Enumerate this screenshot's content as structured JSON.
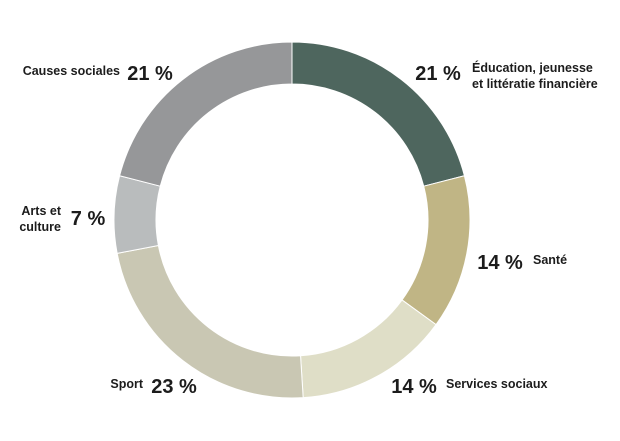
{
  "chart_data": {
    "type": "pie",
    "variant": "donut",
    "start_angle_deg": 0,
    "direction": "clockwise",
    "slices": [
      {
        "label_lines": [
          "Éducation, jeunesse",
          "et littératie financière"
        ],
        "value": 21,
        "display": "21 %",
        "color": "#4e665e"
      },
      {
        "label_lines": [
          "Santé"
        ],
        "value": 14,
        "display": "14 %",
        "color": "#c0b585"
      },
      {
        "label_lines": [
          "Services sociaux"
        ],
        "value": 14,
        "display": "14 %",
        "color": "#dfdec7"
      },
      {
        "label_lines": [
          "Sport"
        ],
        "value": 23,
        "display": "23 %",
        "color": "#c9c7b3"
      },
      {
        "label_lines": [
          "Arts et",
          "culture"
        ],
        "value": 7,
        "display": "7 %",
        "color": "#b9bcbd"
      },
      {
        "label_lines": [
          "Causes sociales"
        ],
        "value": 21,
        "display": "21 %",
        "color": "#969799"
      }
    ]
  }
}
